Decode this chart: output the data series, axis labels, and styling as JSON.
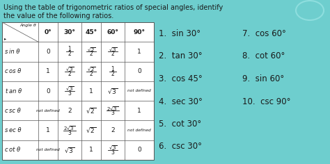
{
  "bg_color": "#6ecece",
  "title_line1": "Using the table of trigonometric ratios of special angles, identify",
  "title_line2": "the value of the following ratios.",
  "col_headers": [
    "0°",
    "30°",
    "45°",
    "60°",
    "90°"
  ],
  "row_labels": [
    "in θ",
    "os θ",
    "an θ",
    "sc θ",
    "ec θ",
    "ot θ"
  ],
  "row_prefix": [
    "s",
    "c",
    "t",
    "c",
    "s",
    "c"
  ],
  "table_data": [
    [
      "0",
      "\\frac{1}{2}",
      "\\frac{\\sqrt{2}}{2}",
      "\\frac{\\sqrt{3}}{2}",
      "1"
    ],
    [
      "1",
      "\\frac{\\sqrt{3}}{2}",
      "\\frac{\\sqrt{2}}{2}",
      "\\frac{1}{2}",
      "0"
    ],
    [
      "0",
      "\\frac{\\sqrt{3}}{3}",
      "1",
      "\\sqrt{3}",
      "not defined"
    ],
    [
      "not defined",
      "2",
      "\\sqrt{2}",
      "\\frac{2\\sqrt{3}}{3}",
      "1"
    ],
    [
      "1",
      "\\frac{2\\sqrt{3}}{3}",
      "\\sqrt{2}",
      "2",
      "not defined"
    ],
    [
      "not defined",
      "\\sqrt{3}",
      "1",
      "\\frac{\\sqrt{3}}{3}",
      "0"
    ]
  ],
  "questions_col1": [
    "1.  sin 30°",
    "2.  tan 30°",
    "3.  cos 45°",
    "4.  sec 30°",
    "5.  cot 30°",
    "6.  csc 30°"
  ],
  "questions_col2": [
    "7.  cos 60°",
    "8.  cot 60°",
    "9.  sin 60°",
    "10.  csc 90°"
  ],
  "text_color": "#1a1a1a",
  "table_line_color": "#555555",
  "font_size_title": 7.0,
  "font_size_header": 6.5,
  "font_size_rowlabel": 6.0,
  "font_size_cell": 6.5,
  "font_size_cell_small": 5.5,
  "font_size_questions": 8.5
}
